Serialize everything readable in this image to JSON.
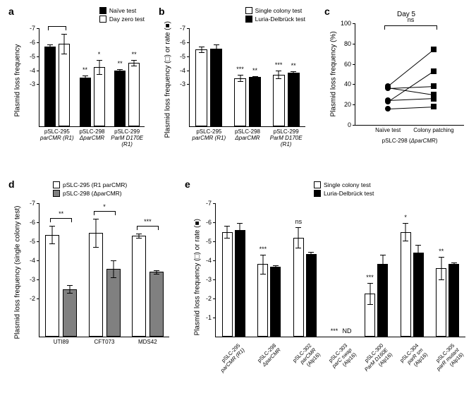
{
  "colors": {
    "black": "#000000",
    "white": "#ffffff",
    "gray": "#808080",
    "bg": "#ffffff"
  },
  "panelA": {
    "label": "a",
    "ylabel": "Plasmid loss frequency",
    "ylim": [
      0,
      -7
    ],
    "yticks": [
      -7,
      -6,
      -5,
      -4,
      -3
    ],
    "legend": [
      {
        "label": "Naïve test",
        "fill": "black"
      },
      {
        "label": "Day zero test",
        "fill": "white"
      }
    ],
    "groups": [
      {
        "name": "pSLC-295",
        "sub": "parCMR (R1)",
        "bars": [
          {
            "v": -5.7,
            "err": 0.15,
            "fill": "black"
          },
          {
            "v": -5.9,
            "err": 0.7,
            "fill": "white"
          }
        ],
        "sig": []
      },
      {
        "name": "pSLC-298",
        "sub": "ΔparCMR",
        "bars": [
          {
            "v": -3.5,
            "err": 0.15,
            "fill": "black",
            "sig": "**"
          },
          {
            "v": -4.25,
            "err": 0.5,
            "fill": "white",
            "sig": "*"
          }
        ]
      },
      {
        "name": "pSLC-299",
        "sub": "ParM D170E (R1)",
        "bars": [
          {
            "v": -4.0,
            "err": 0.1,
            "fill": "black",
            "sig": "**"
          },
          {
            "v": -4.55,
            "err": 0.2,
            "fill": "white",
            "sig": "**"
          }
        ]
      }
    ]
  },
  "panelB": {
    "label": "b",
    "ylabel": "Plasmid loss frequency (□) or rate (■)",
    "ylim": [
      0,
      -7
    ],
    "yticks": [
      -7,
      -6,
      -5,
      -4,
      -3
    ],
    "legend": [
      {
        "label": "Single colony test",
        "fill": "white"
      },
      {
        "label": "Luria-Delbrück test",
        "fill": "black"
      }
    ],
    "groups": [
      {
        "name": "pSLC-295",
        "sub": "parCMR (R1)",
        "bars": [
          {
            "v": -5.5,
            "err": 0.2,
            "fill": "white"
          },
          {
            "v": -5.55,
            "err": 0.3,
            "fill": "black"
          }
        ]
      },
      {
        "name": "pSLC-298",
        "sub": "ΔparCMR",
        "bars": [
          {
            "v": -3.45,
            "err": 0.25,
            "fill": "white",
            "sig": "***"
          },
          {
            "v": -3.55,
            "err": 0.05,
            "fill": "black",
            "sig": "**"
          }
        ]
      },
      {
        "name": "pSLC-299",
        "sub": "ParM D170E (R1)",
        "bars": [
          {
            "v": -3.7,
            "err": 0.3,
            "fill": "white",
            "sig": "***"
          },
          {
            "v": -3.85,
            "err": 0.1,
            "fill": "black",
            "sig": "**"
          }
        ]
      }
    ]
  },
  "panelC": {
    "label": "c",
    "title": "Day 5",
    "ylabel": "Plasmid loss frequency (%)",
    "ylim": [
      0,
      100
    ],
    "yticks": [
      0,
      20,
      40,
      60,
      80,
      100
    ],
    "xcats": [
      "Naïve test",
      "Colony patching"
    ],
    "xsub": "pSLC-298 (ΔparCMR)",
    "sig": "ns",
    "pairs": [
      {
        "l": 16,
        "r": 18,
        "lshape": "circle",
        "rshape": "square"
      },
      {
        "l": 36,
        "r": 38,
        "lshape": "circle",
        "rshape": "square"
      },
      {
        "l": 37,
        "r": 30,
        "lshape": "circle",
        "rshape": "square"
      },
      {
        "l": 38,
        "r": 74,
        "lshape": "circle",
        "rshape": "square"
      },
      {
        "l": 23,
        "r": 53,
        "lshape": "circle",
        "rshape": "square"
      },
      {
        "l": 24,
        "r": 26,
        "lshape": "circle",
        "rshape": "square"
      }
    ]
  },
  "panelD": {
    "label": "d",
    "ylabel": "Plasmid loss frequency (single colony test)",
    "ylim": [
      0,
      -7
    ],
    "yticks": [
      -7,
      -6,
      -5,
      -4,
      -3,
      -2
    ],
    "legend": [
      {
        "label": "pSLC-295 (R1 parCMR)",
        "fill": "white"
      },
      {
        "label": "pSLC-298 (ΔparCMR)",
        "fill": "gray"
      }
    ],
    "groups": [
      {
        "name": "UTI89",
        "bars": [
          {
            "v": -5.35,
            "err": 0.45,
            "fill": "white"
          },
          {
            "v": -2.5,
            "err": 0.2,
            "fill": "gray"
          }
        ],
        "sig": "**"
      },
      {
        "name": "CFT073",
        "bars": [
          {
            "v": -5.45,
            "err": 0.75,
            "fill": "white"
          },
          {
            "v": -3.55,
            "err": 0.45,
            "fill": "gray"
          }
        ],
        "sig": "*"
      },
      {
        "name": "MDS42",
        "bars": [
          {
            "v": -5.3,
            "err": 0.1,
            "fill": "white"
          },
          {
            "v": -3.4,
            "err": 0.1,
            "fill": "gray"
          }
        ],
        "sig": "***"
      }
    ]
  },
  "panelE": {
    "label": "e",
    "ylabel": "Plasmid loss frequency (□) or rate (■)",
    "ylim": [
      0,
      -7
    ],
    "yticks": [
      -7,
      -6,
      -5,
      -4,
      -3,
      -2,
      -1
    ],
    "legend": [
      {
        "label": "Single colony test",
        "fill": "white"
      },
      {
        "label": "Luria-Delbrück test",
        "fill": "black"
      }
    ],
    "groups": [
      {
        "name": "pSLC-295",
        "sub": "parCMR (R1)",
        "bars": [
          {
            "v": -5.5,
            "err": 0.3,
            "fill": "white"
          },
          {
            "v": -5.6,
            "err": 0.35,
            "fill": "black"
          }
        ]
      },
      {
        "name": "pSLC-298",
        "sub": "ΔparCMR",
        "bars": [
          {
            "v": -3.8,
            "err": 0.5,
            "fill": "white",
            "sig": "***"
          },
          {
            "v": -3.65,
            "err": 0.1,
            "fill": "black"
          }
        ]
      },
      {
        "name": "pSLC-302",
        "sub": "parCMR",
        "sub2": "(Alp16)",
        "bars": [
          {
            "v": -5.2,
            "err": 0.55,
            "fill": "white",
            "sig": "ns"
          },
          {
            "v": -4.35,
            "err": 0.1,
            "fill": "black"
          }
        ]
      },
      {
        "name": "pSLC-303",
        "sub": "parC swap",
        "sub2": "(Alp16)",
        "bars": [
          {
            "v": 0,
            "err": 0,
            "fill": "white",
            "sig": "***",
            "nd": true
          },
          {
            "v": 0,
            "err": 0,
            "fill": "black",
            "nd": "ND"
          }
        ]
      },
      {
        "name": "pSLC-300",
        "sub": "ParM D160E",
        "sub2": "(Alp16)",
        "bars": [
          {
            "v": -2.25,
            "err": 0.55,
            "fill": "white",
            "sig": "***"
          },
          {
            "v": -3.8,
            "err": 0.5,
            "fill": "black"
          }
        ]
      },
      {
        "name": "pSLC-304",
        "sub": "parR sm",
        "sub2": "(Alp16)",
        "bars": [
          {
            "v": -5.5,
            "err": 0.45,
            "fill": "white",
            "sig": "*"
          },
          {
            "v": -4.4,
            "err": 0.4,
            "fill": "black"
          }
        ]
      },
      {
        "name": "pSLC-305",
        "sub": "parR mutant",
        "sub2": "(Alp16)",
        "bars": [
          {
            "v": -3.6,
            "err": 0.6,
            "fill": "white",
            "sig": "**"
          },
          {
            "v": -3.8,
            "err": 0.1,
            "fill": "black"
          }
        ]
      }
    ]
  }
}
